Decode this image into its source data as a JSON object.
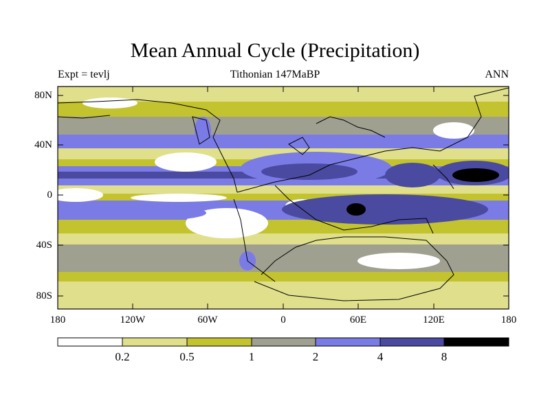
{
  "title": "Mean Annual Cycle (Precipitation)",
  "subtitle_left": "Expt = tevlj",
  "subtitle_center": "Tithonian 147MaBP",
  "subtitle_right": "ANN",
  "map": {
    "y_ticks": [
      "80N",
      "40N",
      "0",
      "40S",
      "80S"
    ],
    "x_ticks": [
      "180",
      "120W",
      "60W",
      "0",
      "60E",
      "120E",
      "180"
    ]
  },
  "colorbar": {
    "labels": [
      "0.2",
      "0.5",
      "1",
      "2",
      "4",
      "8"
    ],
    "colors": [
      "#ffffff",
      "#e0e08c",
      "#c3c32f",
      "#a0a090",
      "#7b7be6",
      "#4a4aa0",
      "#000000"
    ]
  }
}
